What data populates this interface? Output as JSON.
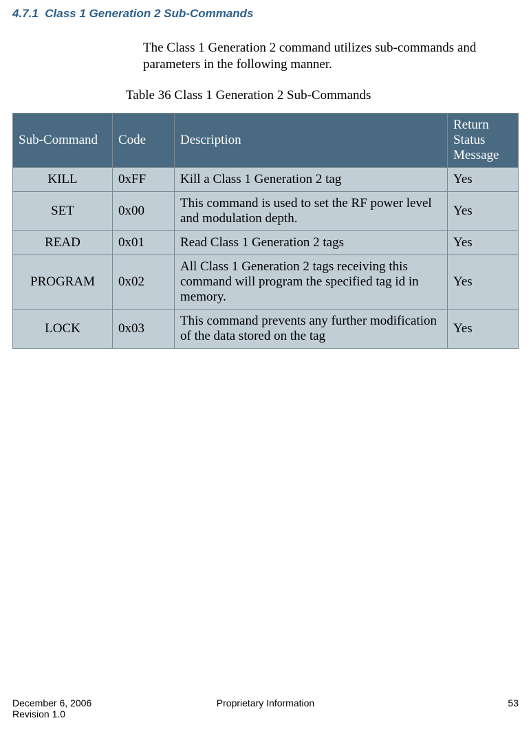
{
  "heading": {
    "number": "4.7.1",
    "title": "Class 1 Generation 2 Sub-Commands"
  },
  "intro": "The Class 1 Generation 2 command utilizes sub-commands and parameters in the following manner.",
  "table": {
    "caption": "Table 36 Class 1 Generation 2 Sub-Commands",
    "columns": [
      "Sub-Command",
      "Code",
      "Description",
      "Return Status Message"
    ],
    "rows": [
      {
        "sub": "KILL",
        "code": "0xFF",
        "desc": "Kill a Class 1 Generation 2 tag",
        "ret": "Yes"
      },
      {
        "sub": "SET",
        "code": "0x00",
        "desc": "This command is used to set the RF power level and modulation depth.",
        "ret": "Yes"
      },
      {
        "sub": "READ",
        "code": "0x01",
        "desc": "Read Class 1 Generation 2 tags",
        "ret": "Yes"
      },
      {
        "sub": "PROGRAM",
        "code": "0x02",
        "desc": "All Class 1 Generation 2 tags receiving this command will program the specified tag id in memory.",
        "ret": "Yes"
      },
      {
        "sub": "LOCK",
        "code": "0x03",
        "desc": "This command prevents any further modification of the data stored on the tag",
        "ret": "Yes"
      }
    ]
  },
  "footer": {
    "date": "December 6, 2006",
    "revision": "Revision 1.0",
    "center": "Proprietary Information",
    "page": "53"
  },
  "styles": {
    "heading_color": "#2e5f8a",
    "header_bg": "#4a6a82",
    "row_bg": "#c2ced6",
    "border_color": "#7a8a94",
    "body_font": "Times New Roman",
    "heading_font": "Verdana",
    "footer_font": "Arial",
    "body_fontsize": 19,
    "heading_fontsize": 17,
    "footer_fontsize": 14
  }
}
